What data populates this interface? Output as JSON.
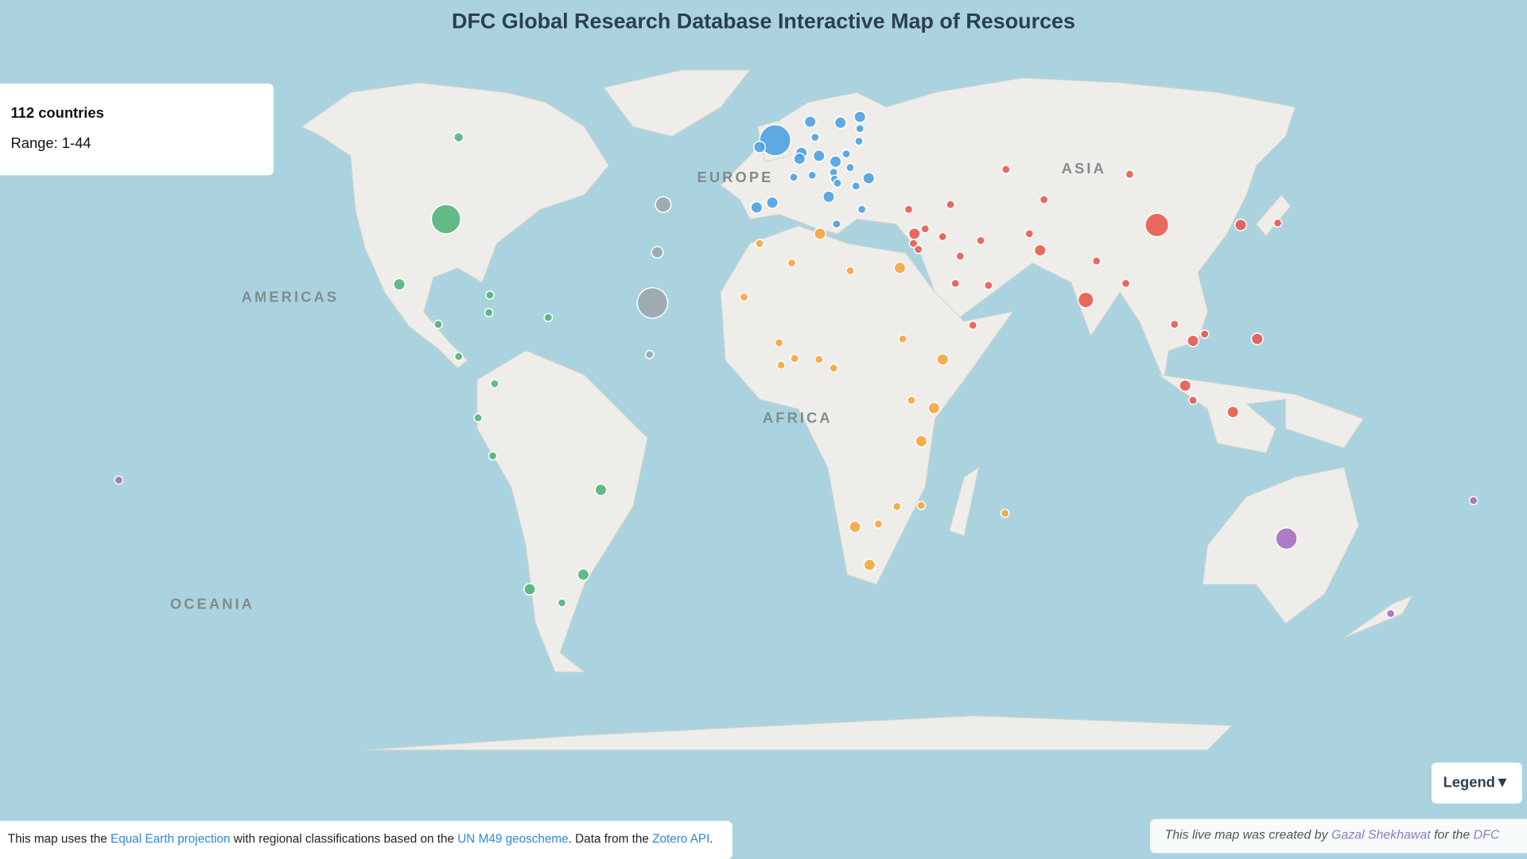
{
  "header": {
    "title": "DFC Global Research Database Interactive Map of Resources"
  },
  "info": {
    "count": "112 countries",
    "range": "Range: 1-44"
  },
  "region_labels": [
    "AMERICAS",
    "EUROPE",
    "AFRICA",
    "ASIA",
    "OCEANIA"
  ],
  "bubble_groups": [
    {
      "color": "#4fb477",
      "values": [
        39,
        4,
        6,
        3,
        3,
        3,
        3,
        3,
        3,
        3,
        3,
        6,
        6,
        3,
        6
      ]
    },
    {
      "color": "#9aa6ab",
      "values": [
        11,
        6,
        42,
        3
      ]
    },
    {
      "color": "#4a9fe0",
      "values": [
        44,
        6,
        6,
        6,
        6,
        3,
        3,
        3,
        6,
        6,
        6,
        3,
        6,
        3,
        3,
        3,
        3,
        3,
        3,
        3,
        6,
        6,
        6,
        6,
        3,
        3
      ]
    },
    {
      "color": "#f5a53a",
      "values": [
        6,
        3,
        3,
        3,
        6,
        3,
        3,
        3,
        3,
        3,
        3,
        3,
        6,
        3,
        6,
        6,
        6,
        3,
        3,
        3,
        6,
        3
      ]
    },
    {
      "color": "#e8574a",
      "values": [
        3,
        3,
        3,
        3,
        3,
        6,
        3,
        3,
        3,
        3,
        3,
        3,
        3,
        3,
        3,
        6,
        3,
        11,
        3,
        25,
        6,
        3,
        3,
        3,
        6,
        3,
        6,
        6,
        3,
        6
      ]
    },
    {
      "color": "#a66bbf",
      "values": [
        21,
        3,
        3,
        3
      ]
    }
  ],
  "legend_button": "Legend▼",
  "footer": [
    {
      "text": "This map uses the "
    },
    {
      "text": "Equal Earth projection",
      "link": true
    },
    {
      "text": " with regional classifications based on the "
    },
    {
      "text": "UN M49 geoscheme",
      "link": true
    },
    {
      "text": ". Data from the "
    },
    {
      "text": "Zotero API",
      "link": true
    },
    {
      "text": "."
    }
  ],
  "credit": [
    {
      "text": "This live map was created by "
    },
    {
      "text": "Gazal Shekhawat",
      "link": true
    },
    {
      "text": " for the "
    },
    {
      "text": "DFC",
      "link": true
    }
  ]
}
